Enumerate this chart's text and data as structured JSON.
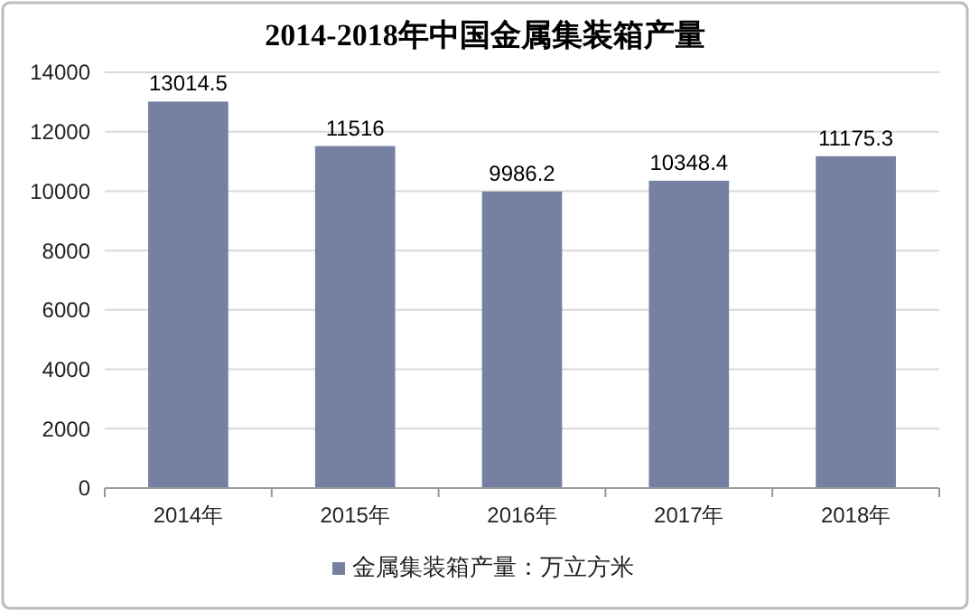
{
  "chart_data": {
    "type": "bar",
    "title": "2014-2018年中国金属集装箱产量",
    "categories": [
      "2014年",
      "2015年",
      "2016年",
      "2017年",
      "2018年"
    ],
    "series": [
      {
        "name": "金属集装箱产量：万立方米",
        "color": "#7680a3",
        "values": [
          13014.5,
          11516,
          9986.2,
          10348.4,
          11175.3
        ]
      }
    ],
    "ylim": [
      0,
      14000
    ],
    "yticks": [
      0,
      2000,
      4000,
      6000,
      8000,
      10000,
      12000,
      14000
    ],
    "grid": "y",
    "legend": "bottom",
    "data_labels": true
  }
}
